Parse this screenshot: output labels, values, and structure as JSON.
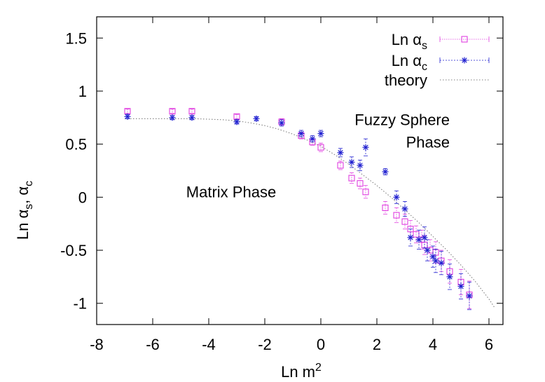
{
  "chart_data": {
    "type": "scatter",
    "title": "",
    "xlabel": "Ln m",
    "xlabel_sup": "2",
    "ylabel_parts": [
      "Ln α",
      "s",
      ", α",
      "c"
    ],
    "xlim": [
      -8,
      6.5
    ],
    "ylim": [
      -1.2,
      1.7
    ],
    "xticks": [
      -8,
      -6,
      -4,
      -2,
      0,
      2,
      4,
      6
    ],
    "yticks": [
      -1,
      -0.5,
      0,
      0.5,
      1,
      1.5
    ],
    "grid": false,
    "legend_position": "top-right",
    "annotations": [
      {
        "lines": [
          "Matrix Phase"
        ],
        "x": -3.2,
        "y": 0.0,
        "align": "middle"
      },
      {
        "lines": [
          "Fuzzy Sphere",
          "Phase"
        ],
        "x": 4.6,
        "y": 0.68,
        "align": "end"
      }
    ],
    "series": [
      {
        "name": "Ln α",
        "name_sub": "s",
        "marker": "square",
        "color": "#e040e0",
        "points": [
          {
            "x": -6.9,
            "y": 0.81,
            "err": 0.02
          },
          {
            "x": -5.3,
            "y": 0.81,
            "err": 0.02
          },
          {
            "x": -4.6,
            "y": 0.81,
            "err": 0.02
          },
          {
            "x": -3.0,
            "y": 0.76,
            "err": 0.02
          },
          {
            "x": -1.4,
            "y": 0.71,
            "err": 0.03
          },
          {
            "x": -0.7,
            "y": 0.58,
            "err": 0.03
          },
          {
            "x": -0.3,
            "y": 0.52,
            "err": 0.03
          },
          {
            "x": 0.0,
            "y": 0.47,
            "err": 0.04
          },
          {
            "x": 0.7,
            "y": 0.3,
            "err": 0.04
          },
          {
            "x": 1.1,
            "y": 0.18,
            "err": 0.05
          },
          {
            "x": 1.4,
            "y": 0.13,
            "err": 0.05
          },
          {
            "x": 1.6,
            "y": 0.05,
            "err": 0.06
          },
          {
            "x": 2.3,
            "y": -0.1,
            "err": 0.06
          },
          {
            "x": 2.7,
            "y": -0.17,
            "err": 0.07
          },
          {
            "x": 3.0,
            "y": -0.23,
            "err": 0.07
          },
          {
            "x": 3.2,
            "y": -0.3,
            "err": 0.08
          },
          {
            "x": 3.4,
            "y": -0.35,
            "err": 0.08
          },
          {
            "x": 3.6,
            "y": -0.4,
            "err": 0.09
          },
          {
            "x": 3.7,
            "y": -0.45,
            "err": 0.09
          },
          {
            "x": 3.9,
            "y": -0.5,
            "err": 0.1
          },
          {
            "x": 4.1,
            "y": -0.52,
            "err": 0.1
          },
          {
            "x": 4.3,
            "y": -0.6,
            "err": 0.1
          },
          {
            "x": 4.6,
            "y": -0.7,
            "err": 0.11
          },
          {
            "x": 5.0,
            "y": -0.8,
            "err": 0.12
          },
          {
            "x": 5.3,
            "y": -0.92,
            "err": 0.13
          }
        ]
      },
      {
        "name": "Ln α",
        "name_sub": "c",
        "marker": "star",
        "color": "#2020d0",
        "points": [
          {
            "x": -6.9,
            "y": 0.76,
            "err": 0.02
          },
          {
            "x": -5.3,
            "y": 0.75,
            "err": 0.02
          },
          {
            "x": -4.6,
            "y": 0.75,
            "err": 0.02
          },
          {
            "x": -3.0,
            "y": 0.71,
            "err": 0.02
          },
          {
            "x": -2.3,
            "y": 0.74,
            "err": 0.02
          },
          {
            "x": -1.4,
            "y": 0.7,
            "err": 0.03
          },
          {
            "x": -0.7,
            "y": 0.6,
            "err": 0.03
          },
          {
            "x": -0.3,
            "y": 0.55,
            "err": 0.03
          },
          {
            "x": 0.0,
            "y": 0.6,
            "err": 0.03
          },
          {
            "x": 0.7,
            "y": 0.42,
            "err": 0.04
          },
          {
            "x": 1.1,
            "y": 0.33,
            "err": 0.05
          },
          {
            "x": 1.4,
            "y": 0.3,
            "err": 0.05
          },
          {
            "x": 1.6,
            "y": 0.47,
            "err": 0.08
          },
          {
            "x": 2.3,
            "y": 0.24,
            "err": 0.03
          },
          {
            "x": 2.7,
            "y": 0.0,
            "err": 0.06
          },
          {
            "x": 3.0,
            "y": -0.11,
            "err": 0.07
          },
          {
            "x": 3.2,
            "y": -0.38,
            "err": 0.08
          },
          {
            "x": 3.5,
            "y": -0.4,
            "err": 0.09
          },
          {
            "x": 3.7,
            "y": -0.38,
            "err": 0.1
          },
          {
            "x": 3.8,
            "y": -0.5,
            "err": 0.1
          },
          {
            "x": 4.0,
            "y": -0.56,
            "err": 0.1
          },
          {
            "x": 4.1,
            "y": -0.6,
            "err": 0.11
          },
          {
            "x": 4.3,
            "y": -0.62,
            "err": 0.11
          },
          {
            "x": 4.6,
            "y": -0.75,
            "err": 0.12
          },
          {
            "x": 5.0,
            "y": -0.84,
            "err": 0.12
          },
          {
            "x": 5.3,
            "y": -0.93,
            "err": 0.13
          }
        ]
      },
      {
        "name": "theory",
        "style": "dotted-line",
        "color": "#808080",
        "x": [
          -7.0,
          -6.5,
          -6.0,
          -5.5,
          -5.0,
          -4.5,
          -4.0,
          -3.5,
          -3.0,
          -2.5,
          -2.0,
          -1.5,
          -1.0,
          -0.5,
          0.0,
          0.5,
          1.0,
          1.5,
          2.0,
          2.5,
          3.0,
          3.5,
          4.0,
          4.5,
          5.0,
          5.5,
          6.0,
          6.2
        ],
        "y": [
          0.74,
          0.74,
          0.74,
          0.74,
          0.74,
          0.74,
          0.735,
          0.73,
          0.72,
          0.7,
          0.675,
          0.64,
          0.595,
          0.54,
          0.48,
          0.4,
          0.31,
          0.21,
          0.11,
          0.0,
          -0.12,
          -0.24,
          -0.37,
          -0.5,
          -0.64,
          -0.79,
          -0.96,
          -1.04
        ]
      }
    ]
  }
}
